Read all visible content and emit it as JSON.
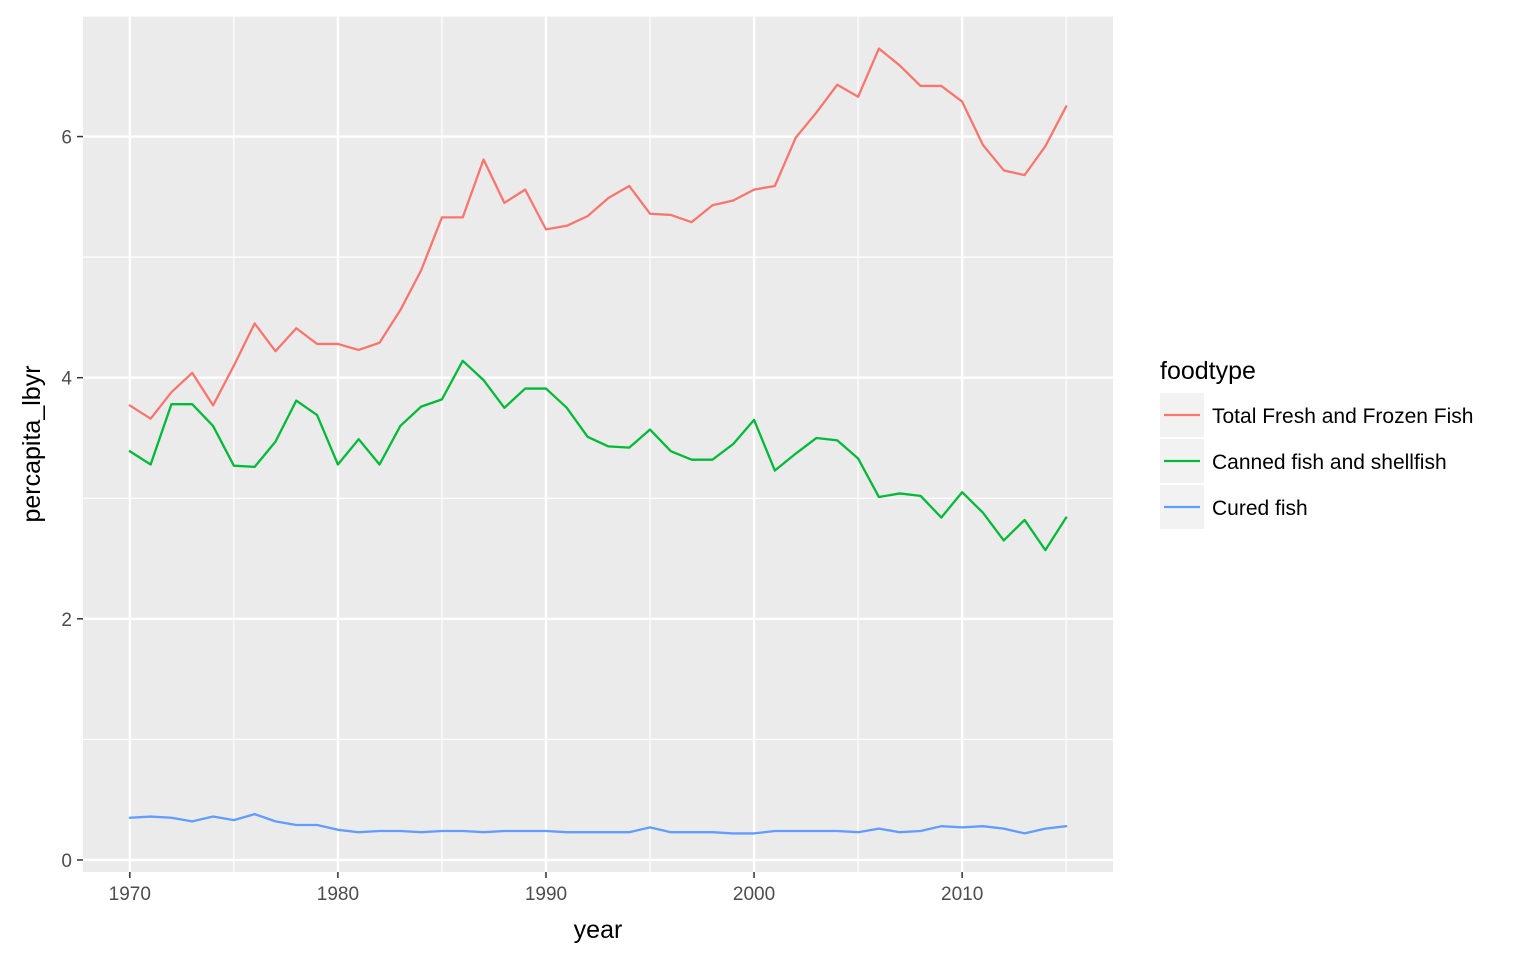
{
  "chart_data": {
    "type": "line",
    "xlabel": "year",
    "ylabel": "percapita_lbyr",
    "xlim": [
      1967.75,
      2017.25
    ],
    "ylim": [
      -0.1,
      7.0
    ],
    "xticks": [
      1970,
      1980,
      1990,
      2000,
      2010
    ],
    "xticks_minor": [
      1975,
      1985,
      1995,
      2005,
      2015
    ],
    "yticks": [
      0,
      2,
      4,
      6
    ],
    "yticks_minor": [
      1,
      3,
      5,
      7
    ],
    "grid": true,
    "legend": {
      "title": "foodtype",
      "position": "right"
    },
    "x": [
      1970,
      1971,
      1972,
      1973,
      1974,
      1975,
      1976,
      1977,
      1978,
      1979,
      1980,
      1981,
      1982,
      1983,
      1984,
      1985,
      1986,
      1987,
      1988,
      1989,
      1990,
      1991,
      1992,
      1993,
      1994,
      1995,
      1996,
      1997,
      1998,
      1999,
      2000,
      2001,
      2002,
      2003,
      2004,
      2005,
      2006,
      2007,
      2008,
      2009,
      2010,
      2011,
      2012,
      2013,
      2014,
      2015
    ],
    "series": [
      {
        "name": "Total Fresh and Frozen Fish",
        "color": "#F8766D",
        "values": [
          3.77,
          3.66,
          3.88,
          4.04,
          3.77,
          4.1,
          4.45,
          4.22,
          4.41,
          4.28,
          4.28,
          4.23,
          4.29,
          4.56,
          4.89,
          5.33,
          5.33,
          5.81,
          5.45,
          5.56,
          5.23,
          5.26,
          5.34,
          5.49,
          5.59,
          5.36,
          5.35,
          5.29,
          5.43,
          5.47,
          5.56,
          5.59,
          5.99,
          6.2,
          6.43,
          6.33,
          6.73,
          6.59,
          6.42,
          6.42,
          6.29,
          5.93,
          5.72,
          5.68,
          5.92,
          6.25
        ]
      },
      {
        "name": "Canned fish and shellfish",
        "color": "#00BA38",
        "values": [
          3.39,
          3.28,
          3.78,
          3.78,
          3.6,
          3.27,
          3.26,
          3.47,
          3.81,
          3.69,
          3.28,
          3.49,
          3.28,
          3.6,
          3.76,
          3.82,
          4.14,
          3.98,
          3.75,
          3.91,
          3.91,
          3.75,
          3.51,
          3.43,
          3.42,
          3.57,
          3.39,
          3.32,
          3.32,
          3.45,
          3.65,
          3.23,
          3.37,
          3.5,
          3.48,
          3.33,
          3.01,
          3.04,
          3.02,
          2.84,
          3.05,
          2.88,
          2.65,
          2.82,
          2.57,
          2.84
        ]
      },
      {
        "name": "Cured fish",
        "color": "#619CFF",
        "values": [
          0.35,
          0.36,
          0.35,
          0.32,
          0.36,
          0.33,
          0.38,
          0.32,
          0.29,
          0.29,
          0.25,
          0.23,
          0.24,
          0.24,
          0.23,
          0.24,
          0.24,
          0.23,
          0.24,
          0.24,
          0.24,
          0.23,
          0.23,
          0.23,
          0.23,
          0.27,
          0.23,
          0.23,
          0.23,
          0.22,
          0.22,
          0.24,
          0.24,
          0.24,
          0.24,
          0.23,
          0.26,
          0.23,
          0.24,
          0.28,
          0.27,
          0.28,
          0.26,
          0.22,
          0.26,
          0.28
        ]
      }
    ]
  }
}
